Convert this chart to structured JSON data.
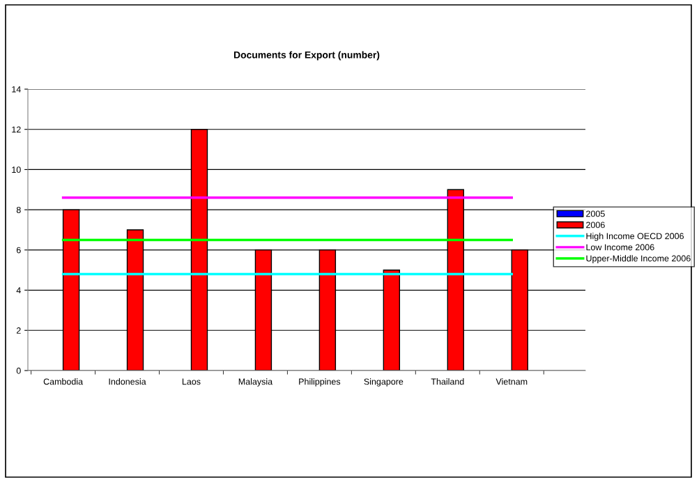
{
  "chart_data": {
    "type": "bar",
    "title": "Documents for Export (number)",
    "categories": [
      "Cambodia",
      "Indonesia",
      "Laos",
      "Malaysia",
      "Philippines",
      "Singapore",
      "Thailand",
      "Vietnam"
    ],
    "series": [
      {
        "name": "2005",
        "color": "#0000ff",
        "values": [
          null,
          null,
          null,
          null,
          null,
          null,
          null,
          null
        ]
      },
      {
        "name": "2006",
        "color": "#ff0000",
        "values": [
          8,
          7,
          12,
          6,
          6,
          5,
          9,
          6
        ]
      },
      {
        "name": "High Income OECD 2006",
        "type": "line",
        "color": "#00ffff",
        "values": [
          4.8,
          4.8,
          4.8,
          4.8,
          4.8,
          4.8,
          4.8,
          4.8
        ]
      },
      {
        "name": "Low Income 2006",
        "type": "line",
        "color": "#ff00ff",
        "values": [
          8.6,
          8.6,
          8.6,
          8.6,
          8.6,
          8.6,
          8.6,
          8.6
        ]
      },
      {
        "name": "Upper-Middle Income 2006",
        "type": "line",
        "color": "#00ff00",
        "values": [
          6.5,
          6.5,
          6.5,
          6.5,
          6.5,
          6.5,
          6.5,
          6.5
        ]
      }
    ],
    "ylim": [
      0,
      14
    ],
    "yticks": [
      0,
      2,
      4,
      6,
      8,
      10,
      12,
      14
    ],
    "grid": "y",
    "legend": "right"
  }
}
